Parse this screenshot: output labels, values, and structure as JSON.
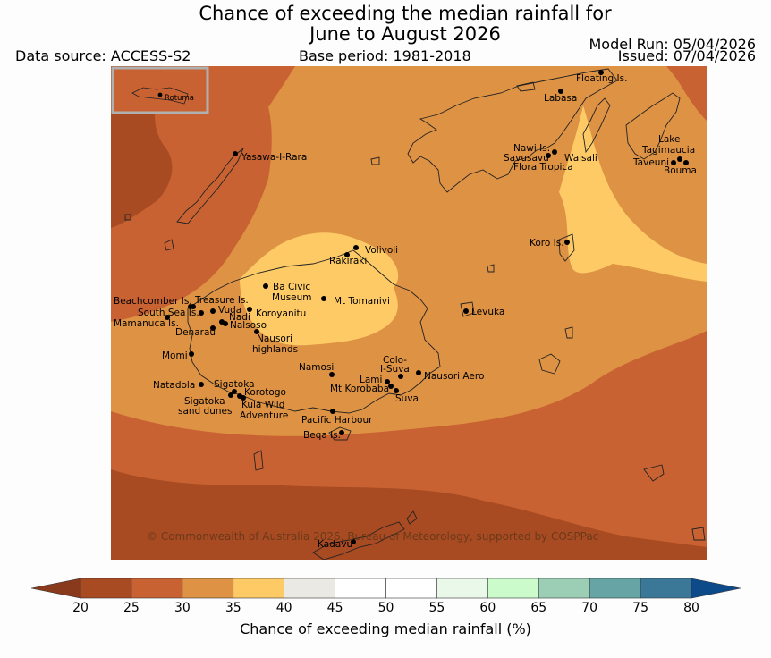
{
  "header": {
    "title_line1": "Chance of exceeding the median rainfall for",
    "title_line2": "June to August 2026",
    "data_source": "Data source: ACCESS-S2",
    "base_period": "Base period: 1981-2018",
    "model_run": "Model Run: 05/04/2026",
    "issued": "Issued: 07/04/2026"
  },
  "map": {
    "inset_label": "Rotuma",
    "copyright": "© Commonwealth of Australia 2026, Bureau of Meteorology, supported by COSPPac",
    "places": [
      {
        "id": "floating-is",
        "label": "Floating Is."
      },
      {
        "id": "labasa",
        "label": "Labasa"
      },
      {
        "id": "nawi-is",
        "label": "Nawi Is."
      },
      {
        "id": "savusavu",
        "label": "Savusavu"
      },
      {
        "id": "waisali",
        "label": "Waisali"
      },
      {
        "id": "flora-tropica",
        "label": "Flora Tropica"
      },
      {
        "id": "lake-tagimaucia-1",
        "label": "Lake"
      },
      {
        "id": "lake-tagimaucia-2",
        "label": "Tagimaucia"
      },
      {
        "id": "taveuni",
        "label": "Taveuni"
      },
      {
        "id": "bouma",
        "label": "Bouma"
      },
      {
        "id": "yasawa",
        "label": "Yasawa-I-Rara"
      },
      {
        "id": "volivoli",
        "label": "Volivoli"
      },
      {
        "id": "rakiraki",
        "label": "Rakiraki"
      },
      {
        "id": "koro-is",
        "label": "Koro Is."
      },
      {
        "id": "ba-civic-1",
        "label": "Ba Civic"
      },
      {
        "id": "ba-civic-2",
        "label": "Museum"
      },
      {
        "id": "mt-tomanivi",
        "label": "Mt Tomanivi"
      },
      {
        "id": "beachcomber",
        "label": "Beachcomber Is."
      },
      {
        "id": "treasure",
        "label": "Treasure Is."
      },
      {
        "id": "south-sea",
        "label": "South Sea Is."
      },
      {
        "id": "vuda",
        "label": "Vuda"
      },
      {
        "id": "nadi",
        "label": "Nadi"
      },
      {
        "id": "koroyanitu",
        "label": "Koroyanitu"
      },
      {
        "id": "mamanuca",
        "label": "Mamanuca Is."
      },
      {
        "id": "nalsoso",
        "label": "Nalsoso"
      },
      {
        "id": "denarau",
        "label": "Denarau"
      },
      {
        "id": "levuka",
        "label": "Levuka"
      },
      {
        "id": "nausori-highlands-1",
        "label": "Nausori"
      },
      {
        "id": "nausori-highlands-2",
        "label": "highlands"
      },
      {
        "id": "momi",
        "label": "Momi"
      },
      {
        "id": "namosi",
        "label": "Namosi"
      },
      {
        "id": "colo-i-suva-1",
        "label": "Colo-"
      },
      {
        "id": "colo-i-suva-2",
        "label": "I-Suva"
      },
      {
        "id": "natadola",
        "label": "Natadola"
      },
      {
        "id": "lami",
        "label": "Lami"
      },
      {
        "id": "nausori-aero",
        "label": "Nausori Aero"
      },
      {
        "id": "sigatoka",
        "label": "Sigatoka"
      },
      {
        "id": "mt-korobaba",
        "label": "Mt Korobaba"
      },
      {
        "id": "korotogo",
        "label": "Korotogo"
      },
      {
        "id": "suva",
        "label": "Suva"
      },
      {
        "id": "sigatoka-dunes-1",
        "label": "Sigatoka"
      },
      {
        "id": "sigatoka-dunes-2",
        "label": "sand dunes"
      },
      {
        "id": "kula-1",
        "label": "Kula Wild"
      },
      {
        "id": "kula-2",
        "label": "Adventure"
      },
      {
        "id": "pacific-harbour",
        "label": "Pacific Harbour"
      },
      {
        "id": "beqa",
        "label": "Beqa Is."
      },
      {
        "id": "kadavu",
        "label": "Kadavu"
      }
    ]
  },
  "colorbar": {
    "label": "Chance of exceeding median rainfall (%)",
    "ticks": [
      "20",
      "25",
      "30",
      "35",
      "40",
      "45",
      "50",
      "55",
      "60",
      "65",
      "70",
      "75",
      "80"
    ],
    "low_color": "#8a3a1c",
    "high_color": "#0d4a8a",
    "bins": [
      {
        "range": "20-25",
        "color": "#a84a22"
      },
      {
        "range": "25-30",
        "color": "#c96232"
      },
      {
        "range": "30-35",
        "color": "#de9244"
      },
      {
        "range": "35-40",
        "color": "#fdca66"
      },
      {
        "range": "40-45",
        "color": "#ebe9e4"
      },
      {
        "range": "45-50",
        "color": "#ffffff"
      },
      {
        "range": "50-55",
        "color": "#ffffff"
      },
      {
        "range": "55-60",
        "color": "#e9f8e9"
      },
      {
        "range": "60-65",
        "color": "#cbfbcb"
      },
      {
        "range": "65-70",
        "color": "#9bceb5"
      },
      {
        "range": "70-75",
        "color": "#67a4a5"
      },
      {
        "range": "75-80",
        "color": "#3b7898"
      }
    ]
  }
}
